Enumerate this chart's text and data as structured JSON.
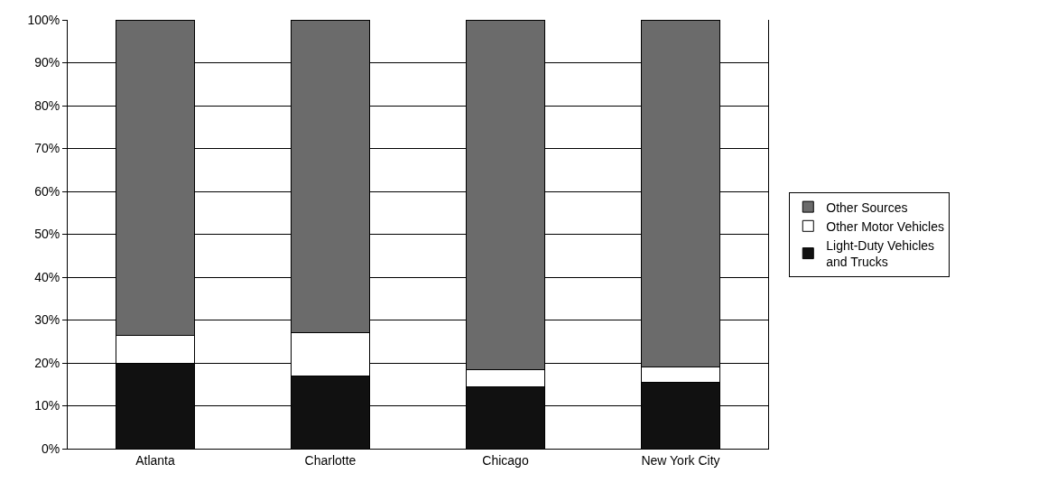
{
  "chart_data": {
    "type": "bar",
    "stacked": true,
    "categories": [
      "Atlanta",
      "Charlotte",
      "Chicago",
      "New York City"
    ],
    "series": [
      {
        "name": "Light-Duty Vehicles and Trucks",
        "color": "#111111",
        "values": [
          20,
          17,
          14.5,
          15.5
        ]
      },
      {
        "name": "Other Motor Vehicles",
        "color": "#ffffff",
        "values": [
          6.5,
          10,
          4,
          3.5
        ]
      },
      {
        "name": "Other Sources",
        "color": "#6b6b6b",
        "values": [
          73.5,
          73,
          81.5,
          81
        ]
      }
    ],
    "ylim": [
      0,
      100
    ],
    "yticks": [
      {
        "value": 0,
        "label": "0%"
      },
      {
        "value": 10,
        "label": "10%"
      },
      {
        "value": 20,
        "label": "20%"
      },
      {
        "value": 30,
        "label": "30%"
      },
      {
        "value": 40,
        "label": "40%"
      },
      {
        "value": 50,
        "label": "50%"
      },
      {
        "value": 60,
        "label": "60%"
      },
      {
        "value": 70,
        "label": "70%"
      },
      {
        "value": 80,
        "label": "80%"
      },
      {
        "value": 90,
        "label": "90%"
      },
      {
        "value": 100,
        "label": "100%"
      }
    ],
    "grid": "y",
    "legend": "right"
  }
}
